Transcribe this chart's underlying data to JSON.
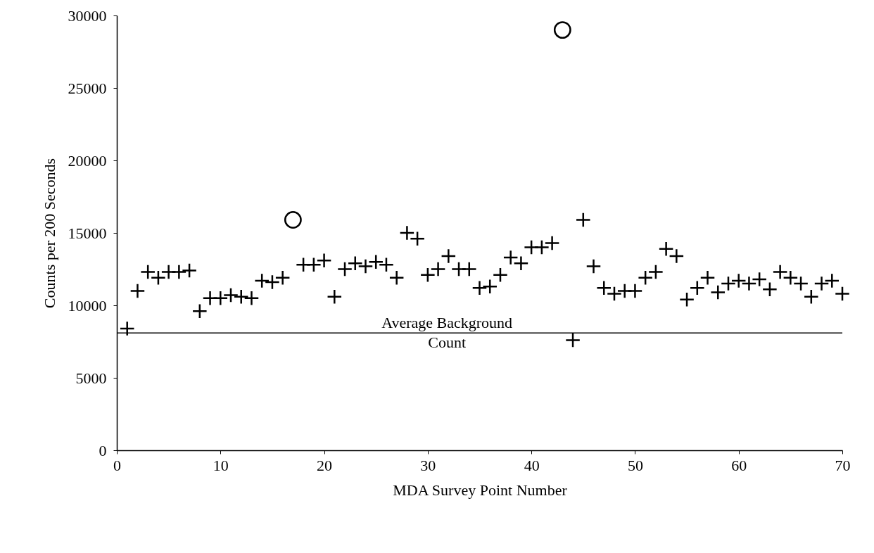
{
  "chart_data": {
    "type": "scatter",
    "xlabel": "MDA Survey Point Number",
    "ylabel": "Counts per 200 Seconds",
    "xlim": [
      0,
      70
    ],
    "xticks": [
      0,
      10,
      20,
      30,
      40,
      50,
      60,
      70
    ],
    "ylim": [
      0,
      30000
    ],
    "yticks": [
      0,
      5000,
      10000,
      15000,
      20000,
      25000,
      30000
    ],
    "grid": false,
    "series": [
      {
        "color": "#000000",
        "marker": "cross",
        "x": [
          1,
          2,
          3,
          4,
          5,
          6,
          7,
          8,
          9,
          10,
          11,
          12,
          13,
          14,
          15,
          16,
          18,
          19,
          20,
          21,
          22,
          23,
          24,
          25,
          26,
          27,
          28,
          29,
          30,
          31,
          32,
          33,
          34,
          35,
          36,
          37,
          38,
          39,
          40,
          41,
          42,
          44,
          45,
          46,
          47,
          48,
          49,
          50,
          51,
          52,
          53,
          54,
          55,
          56,
          57,
          58,
          59,
          60,
          61,
          62,
          63,
          64,
          65,
          66,
          67,
          68,
          69,
          70
        ],
        "values": [
          8400,
          11000,
          12300,
          11900,
          12300,
          12300,
          12400,
          9600,
          10500,
          10500,
          10700,
          10600,
          10500,
          11700,
          11600,
          11900,
          12800,
          12800,
          13100,
          10600,
          12500,
          12900,
          12700,
          13000,
          12800,
          11900,
          15000,
          14600,
          12100,
          12500,
          13400,
          12500,
          12500,
          11200,
          11300,
          12100,
          13300,
          12900,
          14000,
          14000,
          14300,
          7600,
          15900,
          12700,
          11200,
          10800,
          11000,
          11000,
          11900,
          12300,
          13900,
          13400,
          10400,
          11200,
          11900,
          10900,
          11500,
          11700,
          11500,
          11800,
          11100,
          12300,
          11900,
          11500,
          10600,
          11500,
          11700,
          10800
        ]
      },
      {
        "color": "#000000",
        "marker": "circle",
        "x": [
          17,
          43
        ],
        "values": [
          15900,
          29000
        ]
      }
    ],
    "ref_lines": [
      {
        "axis": "y",
        "value": 8100,
        "label": "Average Background Count",
        "color": "#000000",
        "line_style": "solid"
      }
    ]
  }
}
